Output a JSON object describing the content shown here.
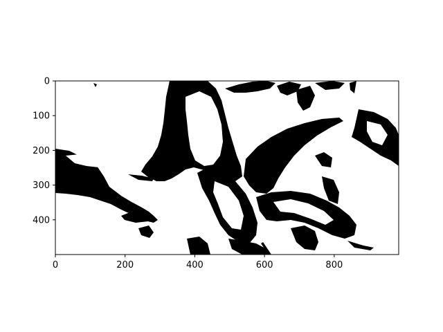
{
  "image": {
    "description_colors": {
      "foreground": "#000000",
      "background": "#ffffff"
    },
    "x_ticks": [
      "0",
      "200",
      "400",
      "600",
      "800"
    ],
    "y_ticks": [
      "0",
      "100",
      "200",
      "300",
      "400"
    ],
    "x_tick_values": [
      0,
      200,
      400,
      600,
      800
    ],
    "y_tick_values": [
      0,
      100,
      200,
      300,
      400
    ],
    "xlim": [
      0,
      985
    ],
    "ylim": [
      500,
      0
    ]
  }
}
